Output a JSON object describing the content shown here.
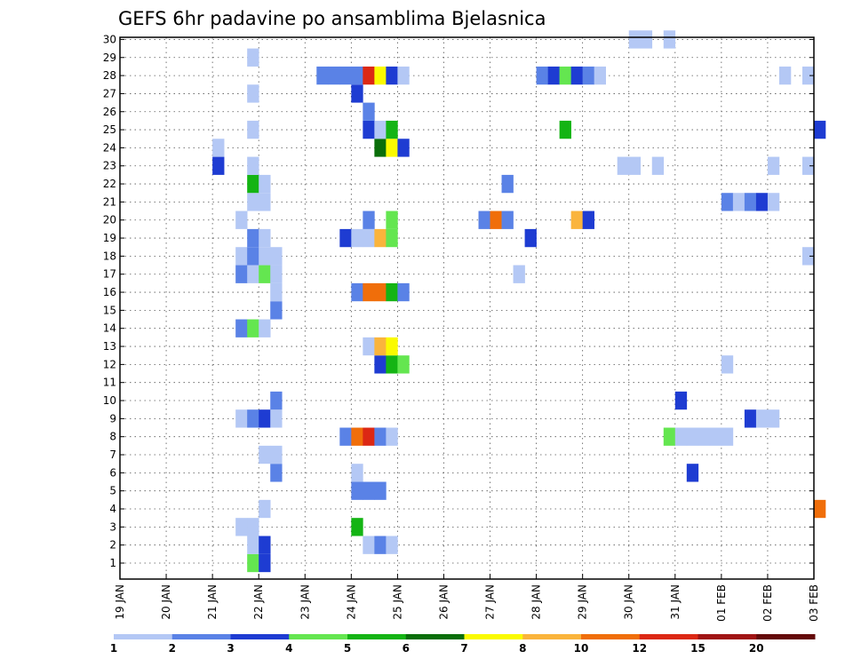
{
  "chart_data": {
    "type": "heatmap",
    "title": "GEFS 6hr padavine po ansamblima Bjelasnica",
    "xlabel": "",
    "ylabel": "",
    "x_ticks": [
      "19 JAN",
      "20 JAN",
      "21 JAN",
      "22 JAN",
      "23 JAN",
      "24 JAN",
      "25 JAN",
      "26 JAN",
      "27 JAN",
      "28 JAN",
      "29 JAN",
      "30 JAN",
      "31 JAN",
      "01 FEB",
      "02 FEB",
      "03 FEB"
    ],
    "y_ticks": [
      "1",
      "2",
      "3",
      "4",
      "5",
      "6",
      "7",
      "8",
      "9",
      "10",
      "11",
      "12",
      "13",
      "14",
      "15",
      "16",
      "17",
      "18",
      "19",
      "20",
      "21",
      "22",
      "23",
      "24",
      "25",
      "26",
      "27",
      "28",
      "29",
      "30"
    ],
    "grid": true,
    "time_step_hours": 6,
    "colorbar": {
      "labels": [
        "1",
        "2",
        "3",
        "4",
        "5",
        "6",
        "7",
        "8",
        "10",
        "12",
        "15",
        "20"
      ],
      "colors": [
        "#b4c8f5",
        "#5a82e6",
        "#1e3cd2",
        "#64e650",
        "#14b414",
        "#0a6e0a",
        "#fafa00",
        "#fab43c",
        "#f06e0a",
        "#dc2814",
        "#a01414",
        "#640a0a"
      ]
    },
    "cells": [
      {
        "member": 1,
        "x": 11,
        "c": 4
      },
      {
        "member": 1,
        "x": 12,
        "c": 3
      },
      {
        "member": 2,
        "x": 11,
        "c": 1
      },
      {
        "member": 2,
        "x": 12,
        "c": 3
      },
      {
        "member": 2,
        "x": 21,
        "c": 1
      },
      {
        "member": 2,
        "x": 22,
        "c": 2
      },
      {
        "member": 2,
        "x": 23,
        "c": 1
      },
      {
        "member": 3,
        "x": 10,
        "c": 1
      },
      {
        "member": 3,
        "x": 11,
        "c": 1
      },
      {
        "member": 3,
        "x": 20,
        "c": 5
      },
      {
        "member": 4,
        "x": 12,
        "c": 1
      },
      {
        "member": 4,
        "x": 60,
        "c": 9
      },
      {
        "member": 5,
        "x": 20,
        "c": 2
      },
      {
        "member": 5,
        "x": 21,
        "c": 2
      },
      {
        "member": 5,
        "x": 22,
        "c": 2
      },
      {
        "member": 6,
        "x": 13,
        "c": 2
      },
      {
        "member": 6,
        "x": 20,
        "c": 1
      },
      {
        "member": 6,
        "x": 49,
        "c": 3
      },
      {
        "member": 7,
        "x": 12,
        "c": 1
      },
      {
        "member": 7,
        "x": 13,
        "c": 1
      },
      {
        "member": 8,
        "x": 19,
        "c": 2
      },
      {
        "member": 8,
        "x": 20,
        "c": 9
      },
      {
        "member": 8,
        "x": 21,
        "c": 10
      },
      {
        "member": 8,
        "x": 22,
        "c": 2
      },
      {
        "member": 8,
        "x": 23,
        "c": 1
      },
      {
        "member": 8,
        "x": 47,
        "c": 4
      },
      {
        "member": 8,
        "x": 48,
        "c": 1
      },
      {
        "member": 8,
        "x": 49,
        "c": 1
      },
      {
        "member": 8,
        "x": 50,
        "c": 1
      },
      {
        "member": 8,
        "x": 51,
        "c": 1
      },
      {
        "member": 8,
        "x": 52,
        "c": 1
      },
      {
        "member": 9,
        "x": 10,
        "c": 1
      },
      {
        "member": 9,
        "x": 11,
        "c": 2
      },
      {
        "member": 9,
        "x": 12,
        "c": 3
      },
      {
        "member": 9,
        "x": 13,
        "c": 1
      },
      {
        "member": 9,
        "x": 54,
        "c": 3
      },
      {
        "member": 9,
        "x": 55,
        "c": 1
      },
      {
        "member": 9,
        "x": 56,
        "c": 1
      },
      {
        "member": 10,
        "x": 13,
        "c": 2
      },
      {
        "member": 10,
        "x": 48,
        "c": 3
      },
      {
        "member": 12,
        "x": 22,
        "c": 3
      },
      {
        "member": 12,
        "x": 23,
        "c": 5
      },
      {
        "member": 12,
        "x": 24,
        "c": 4
      },
      {
        "member": 12,
        "x": 52,
        "c": 1
      },
      {
        "member": 13,
        "x": 21,
        "c": 1
      },
      {
        "member": 13,
        "x": 22,
        "c": 8
      },
      {
        "member": 13,
        "x": 23,
        "c": 7
      },
      {
        "member": 14,
        "x": 10,
        "c": 2
      },
      {
        "member": 14,
        "x": 11,
        "c": 4
      },
      {
        "member": 14,
        "x": 12,
        "c": 1
      },
      {
        "member": 15,
        "x": 13,
        "c": 2
      },
      {
        "member": 16,
        "x": 13,
        "c": 1
      },
      {
        "member": 16,
        "x": 20,
        "c": 2
      },
      {
        "member": 16,
        "x": 21,
        "c": 9
      },
      {
        "member": 16,
        "x": 22,
        "c": 9
      },
      {
        "member": 16,
        "x": 23,
        "c": 5
      },
      {
        "member": 16,
        "x": 24,
        "c": 2
      },
      {
        "member": 17,
        "x": 10,
        "c": 2
      },
      {
        "member": 17,
        "x": 11,
        "c": 1
      },
      {
        "member": 17,
        "x": 12,
        "c": 4
      },
      {
        "member": 17,
        "x": 13,
        "c": 1
      },
      {
        "member": 17,
        "x": 34,
        "c": 1
      },
      {
        "member": 18,
        "x": 10,
        "c": 1
      },
      {
        "member": 18,
        "x": 11,
        "c": 2
      },
      {
        "member": 18,
        "x": 12,
        "c": 1
      },
      {
        "member": 18,
        "x": 13,
        "c": 1
      },
      {
        "member": 18,
        "x": 59,
        "c": 1
      },
      {
        "member": 19,
        "x": 11,
        "c": 2
      },
      {
        "member": 19,
        "x": 12,
        "c": 1
      },
      {
        "member": 19,
        "x": 19,
        "c": 3
      },
      {
        "member": 19,
        "x": 20,
        "c": 1
      },
      {
        "member": 19,
        "x": 21,
        "c": 1
      },
      {
        "member": 19,
        "x": 22,
        "c": 8
      },
      {
        "member": 19,
        "x": 23,
        "c": 4
      },
      {
        "member": 19,
        "x": 35,
        "c": 3
      },
      {
        "member": 20,
        "x": 10,
        "c": 1
      },
      {
        "member": 20,
        "x": 21,
        "c": 2
      },
      {
        "member": 20,
        "x": 23,
        "c": 4
      },
      {
        "member": 20,
        "x": 31,
        "c": 2
      },
      {
        "member": 20,
        "x": 32,
        "c": 9
      },
      {
        "member": 20,
        "x": 33,
        "c": 2
      },
      {
        "member": 20,
        "x": 39,
        "c": 8
      },
      {
        "member": 20,
        "x": 40,
        "c": 3
      },
      {
        "member": 21,
        "x": 11,
        "c": 1
      },
      {
        "member": 21,
        "x": 12,
        "c": 1
      },
      {
        "member": 21,
        "x": 52,
        "c": 2
      },
      {
        "member": 21,
        "x": 53,
        "c": 1
      },
      {
        "member": 21,
        "x": 54,
        "c": 2
      },
      {
        "member": 21,
        "x": 55,
        "c": 3
      },
      {
        "member": 21,
        "x": 56,
        "c": 1
      },
      {
        "member": 22,
        "x": 11,
        "c": 5
      },
      {
        "member": 22,
        "x": 12,
        "c": 1
      },
      {
        "member": 22,
        "x": 33,
        "c": 2
      },
      {
        "member": 23,
        "x": 8,
        "c": 3
      },
      {
        "member": 23,
        "x": 11,
        "c": 1
      },
      {
        "member": 23,
        "x": 43,
        "c": 1
      },
      {
        "member": 23,
        "x": 44,
        "c": 1
      },
      {
        "member": 23,
        "x": 46,
        "c": 1
      },
      {
        "member": 23,
        "x": 56,
        "c": 1
      },
      {
        "member": 23,
        "x": 59,
        "c": 1
      },
      {
        "member": 24,
        "x": 8,
        "c": 1
      },
      {
        "member": 24,
        "x": 22,
        "c": 6
      },
      {
        "member": 24,
        "x": 23,
        "c": 7
      },
      {
        "member": 24,
        "x": 24,
        "c": 3
      },
      {
        "member": 25,
        "x": 11,
        "c": 1
      },
      {
        "member": 25,
        "x": 21,
        "c": 3
      },
      {
        "member": 25,
        "x": 22,
        "c": 1
      },
      {
        "member": 25,
        "x": 23,
        "c": 5
      },
      {
        "member": 25,
        "x": 38,
        "c": 5
      },
      {
        "member": 25,
        "x": 60,
        "c": 3
      },
      {
        "member": 26,
        "x": 21,
        "c": 2
      },
      {
        "member": 27,
        "x": 11,
        "c": 1
      },
      {
        "member": 27,
        "x": 20,
        "c": 3
      },
      {
        "member": 28,
        "x": 17,
        "c": 2
      },
      {
        "member": 28,
        "x": 18,
        "c": 2
      },
      {
        "member": 28,
        "x": 19,
        "c": 2
      },
      {
        "member": 28,
        "x": 20,
        "c": 2
      },
      {
        "member": 28,
        "x": 21,
        "c": 10
      },
      {
        "member": 28,
        "x": 22,
        "c": 7
      },
      {
        "member": 28,
        "x": 23,
        "c": 3
      },
      {
        "member": 28,
        "x": 24,
        "c": 1
      },
      {
        "member": 28,
        "x": 36,
        "c": 2
      },
      {
        "member": 28,
        "x": 37,
        "c": 3
      },
      {
        "member": 28,
        "x": 38,
        "c": 4
      },
      {
        "member": 28,
        "x": 39,
        "c": 3
      },
      {
        "member": 28,
        "x": 40,
        "c": 2
      },
      {
        "member": 28,
        "x": 41,
        "c": 1
      },
      {
        "member": 28,
        "x": 57,
        "c": 1
      },
      {
        "member": 28,
        "x": 59,
        "c": 1
      },
      {
        "member": 29,
        "x": 11,
        "c": 1
      },
      {
        "member": 30,
        "x": 44,
        "c": 1
      },
      {
        "member": 30,
        "x": 45,
        "c": 1
      },
      {
        "member": 30,
        "x": 47,
        "c": 1
      }
    ]
  }
}
